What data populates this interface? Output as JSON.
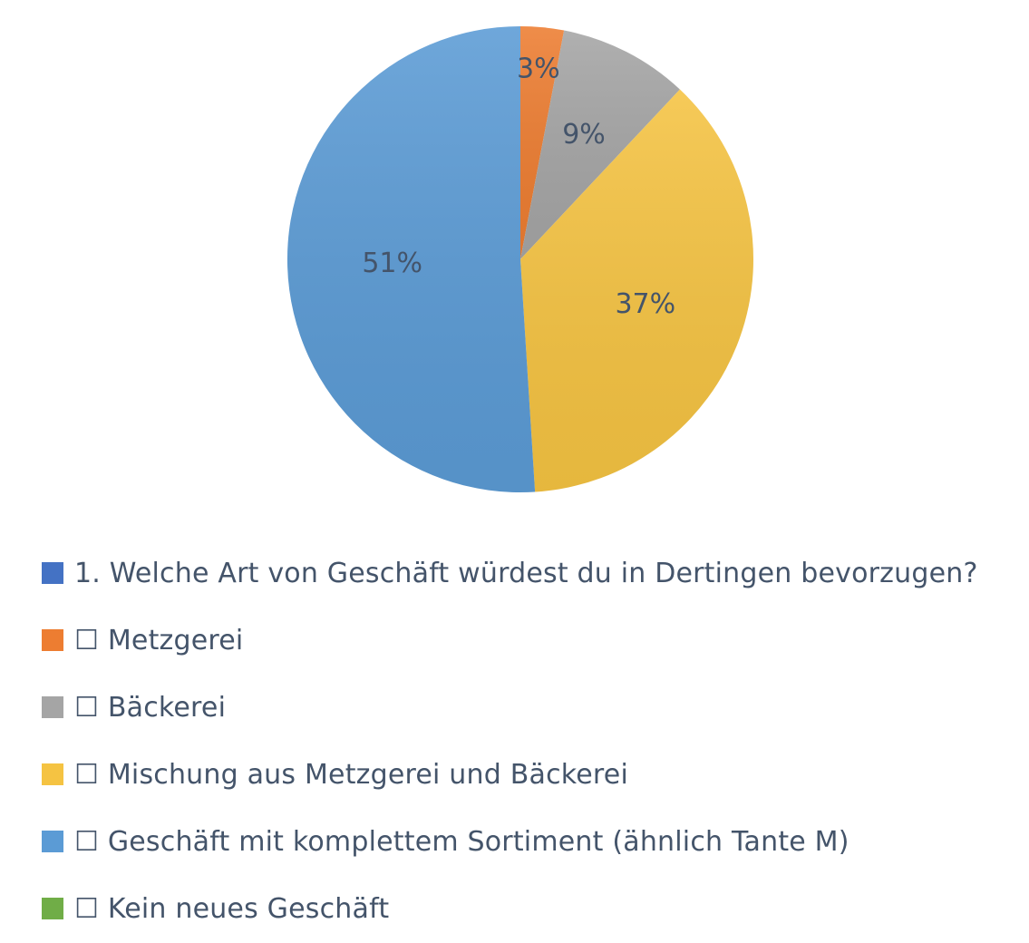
{
  "chart_data": {
    "type": "pie",
    "title": "",
    "slices": [
      {
        "label": "☐ Metzgerei",
        "value": 3,
        "display": "3%",
        "color": "#ED7D31"
      },
      {
        "label": "☐ Bäckerei",
        "value": 9,
        "display": "9%",
        "color": "#A5A5A5"
      },
      {
        "label": "☐ Mischung aus Metzgerei und Bäckerei",
        "value": 37,
        "display": "37%",
        "color": "#F5C342"
      },
      {
        "label": "☐ Geschäft mit komplettem Sortiment (ähnlich Tante M)",
        "value": 51,
        "display": "51%",
        "color": "#5B9BD5"
      },
      {
        "label": "☐ Kein neues Geschäft",
        "value": 0,
        "display": "",
        "color": "#70AD47"
      }
    ],
    "legend": {
      "placement": "bottom",
      "entries": [
        {
          "text": "1. Welche Art von Geschäft würdest du in Dertingen bevorzugen?",
          "color": "#4472C4"
        },
        {
          "text": "☐ Metzgerei",
          "color": "#ED7D31"
        },
        {
          "text": "☐ Bäckerei",
          "color": "#A5A5A5"
        },
        {
          "text": "☐ Mischung aus Metzgerei und Bäckerei",
          "color": "#F5C342"
        },
        {
          "text": "☐ Geschäft mit komplettem Sortiment (ähnlich Tante M)",
          "color": "#5B9BD5"
        },
        {
          "text": "☐ Kein neues Geschäft",
          "color": "#70AD47"
        }
      ]
    }
  }
}
